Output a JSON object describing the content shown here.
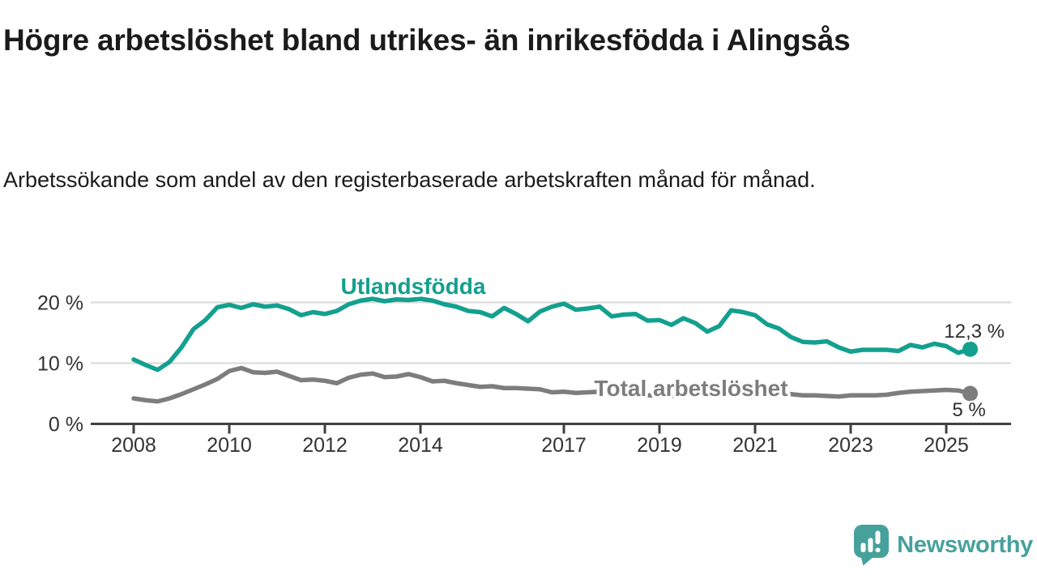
{
  "header": {
    "title": "Högre arbetslöshet bland utrikes- än inrikesfödda i Alingsås",
    "subtitle": "Arbetssökande som andel av den registerbaserade arbetskraften månad för månad."
  },
  "chart_data": {
    "type": "line",
    "title": "Högre arbetslöshet bland utrikes- än inrikesfödda i Alingsås",
    "subtitle": "Arbetssökande som andel av den registerbaserade arbetskraften månad för månad.",
    "x_unit": "year (monthly data shown, sampled quarterly)",
    "y_unit": "%",
    "xlim": [
      2007.1,
      2026.3
    ],
    "ylim": [
      0,
      22
    ],
    "grid": "horizontal",
    "legend": "inline-labels",
    "x_ticks": [
      2008,
      2010,
      2012,
      2014,
      2017,
      2019,
      2021,
      2023,
      2025
    ],
    "x_tick_labels": [
      "2008",
      "2010",
      "2012",
      "2014",
      "2017",
      "2019",
      "2021",
      "2023",
      "2025"
    ],
    "y_ticks": [
      {
        "v": 0,
        "label": "0 %"
      },
      {
        "v": 10,
        "label": "10 %"
      },
      {
        "v": 20,
        "label": "20 %"
      }
    ],
    "x": [
      2008.0,
      2008.25,
      2008.5,
      2008.75,
      2009.0,
      2009.25,
      2009.5,
      2009.75,
      2010.0,
      2010.25,
      2010.5,
      2010.75,
      2011.0,
      2011.25,
      2011.5,
      2011.75,
      2012.0,
      2012.25,
      2012.5,
      2012.75,
      2013.0,
      2013.25,
      2013.5,
      2013.75,
      2014.0,
      2014.25,
      2014.5,
      2014.75,
      2015.0,
      2015.25,
      2015.5,
      2015.75,
      2016.0,
      2016.25,
      2016.5,
      2016.75,
      2017.0,
      2017.25,
      2017.5,
      2017.75,
      2018.0,
      2018.25,
      2018.5,
      2018.75,
      2019.0,
      2019.25,
      2019.5,
      2019.75,
      2020.0,
      2020.25,
      2020.5,
      2020.75,
      2021.0,
      2021.25,
      2021.5,
      2021.75,
      2022.0,
      2022.25,
      2022.5,
      2022.75,
      2023.0,
      2023.25,
      2023.5,
      2023.75,
      2024.0,
      2024.25,
      2024.5,
      2024.75,
      2025.0,
      2025.25,
      2025.5
    ],
    "series": [
      {
        "name": "Utlandsfödda",
        "color": "#13a08e",
        "end_label": "12,3 %",
        "end_value": 12.3,
        "values": [
          10.6,
          9.7,
          8.9,
          10.2,
          12.6,
          15.6,
          17.1,
          19.2,
          19.6,
          19.1,
          19.7,
          19.3,
          19.5,
          18.9,
          17.9,
          18.4,
          18.1,
          18.6,
          19.7,
          20.3,
          20.6,
          20.2,
          20.5,
          20.4,
          20.6,
          20.3,
          19.7,
          19.3,
          18.6,
          18.4,
          17.7,
          19.1,
          18.1,
          16.9,
          18.5,
          19.3,
          19.8,
          18.8,
          19.0,
          19.3,
          17.7,
          18.0,
          18.1,
          17.0,
          17.1,
          16.3,
          17.4,
          16.6,
          15.2,
          16.1,
          18.7,
          18.4,
          17.9,
          16.4,
          15.7,
          14.3,
          13.5,
          13.4,
          13.6,
          12.6,
          11.9,
          12.2,
          12.2,
          12.2,
          12.0,
          13.0,
          12.6,
          13.2,
          12.8,
          11.7,
          12.3
        ]
      },
      {
        "name": "Total arbetslöshet",
        "color": "#7d7d7d",
        "end_label": "5 %",
        "end_value": 5.0,
        "values": [
          4.2,
          3.9,
          3.7,
          4.2,
          4.9,
          5.7,
          6.5,
          7.4,
          8.7,
          9.2,
          8.5,
          8.4,
          8.6,
          7.9,
          7.2,
          7.3,
          7.1,
          6.7,
          7.6,
          8.1,
          8.3,
          7.7,
          7.8,
          8.2,
          7.7,
          7.0,
          7.1,
          6.7,
          6.4,
          6.1,
          6.2,
          5.9,
          5.9,
          5.8,
          5.7,
          5.2,
          5.3,
          5.1,
          5.2,
          5.3,
          5.1,
          4.9,
          4.8,
          4.7,
          4.7,
          4.6,
          4.8,
          4.9,
          5.1,
          5.7,
          6.0,
          5.8,
          5.6,
          5.3,
          5.1,
          4.9,
          4.7,
          4.7,
          4.6,
          4.5,
          4.7,
          4.7,
          4.7,
          4.8,
          5.1,
          5.3,
          5.4,
          5.5,
          5.6,
          5.5,
          5.0
        ]
      }
    ]
  },
  "footer": {
    "brand": "Newsworthy",
    "brand_color": "#46a19c",
    "logo_icon": "speech-bubble-bar-chart-exclamation-icon"
  },
  "colors": {
    "background": "#ffffff",
    "title_text": "#1b1b1b",
    "axis_text": "#333333",
    "axis_line": "#404040",
    "gridline": "#d8d8d8",
    "series_utlandsfodda": "#13a08e",
    "series_total": "#7d7d7d"
  }
}
